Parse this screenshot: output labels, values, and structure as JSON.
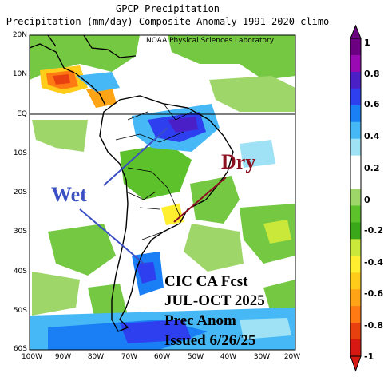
{
  "titles": {
    "line1": "GPCP Precipitation",
    "line2": "Precipitation (mm/day) Composite Anomaly 1991-2020 climo",
    "credit": "NOAA Physical Sciences Laboratory"
  },
  "axes": {
    "lat_labels": [
      "20N",
      "10N",
      "EQ",
      "10S",
      "20S",
      "30S",
      "40S",
      "50S",
      "60S"
    ],
    "lon_labels": [
      "100W",
      "90W",
      "80W",
      "70W",
      "60W",
      "50W",
      "40W",
      "30W",
      "20W"
    ]
  },
  "colorbar": {
    "ticks": [
      "1",
      "0.8",
      "0.6",
      "0.4",
      "0.2",
      "0",
      "-0.2",
      "-0.4",
      "-0.6",
      "-0.8",
      "-1"
    ],
    "colors": [
      "#6b0080",
      "#9a0ab3",
      "#4b1fc8",
      "#2e3ff0",
      "#1a7ff5",
      "#45b8f5",
      "#9fe2f5",
      "#ffffff",
      "#ffffff",
      "#9ed66a",
      "#5cc12a",
      "#3aa61a",
      "#c9e83a",
      "#ffef2e",
      "#ffcc1a",
      "#ffa515",
      "#ff7a12",
      "#e8400f",
      "#d81812"
    ]
  },
  "annotations": {
    "wet": "Wet",
    "dry": "Dry",
    "forecast_line1": "CIC CA Fcst",
    "forecast_line2": "JUL-OCT 2025",
    "forecast_line3": "Prec Anom",
    "forecast_line4": "Issued 6/26/25"
  },
  "colors": {
    "wet": "#3a4fc4",
    "dry": "#8b1020"
  }
}
